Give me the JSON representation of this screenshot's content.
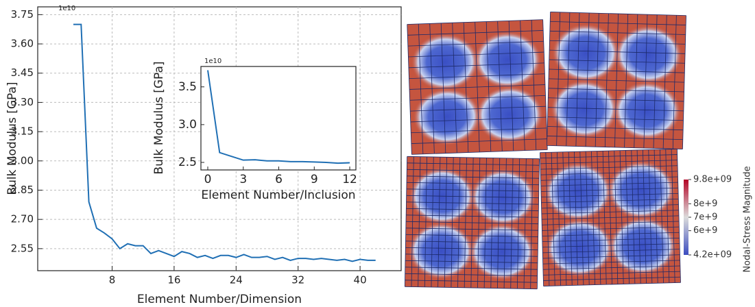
{
  "chart_data": [
    {
      "type": "line",
      "x_label": "Element Number/Dimension",
      "y_label": "Bulk Modulus [GPa]",
      "offset_text": "1e10",
      "x": [
        3,
        4,
        5,
        6,
        7,
        8,
        9,
        10,
        11,
        12,
        13,
        14,
        15,
        16,
        17,
        18,
        19,
        20,
        21,
        22,
        23,
        24,
        25,
        26,
        27,
        28,
        29,
        30,
        31,
        32,
        33,
        34,
        35,
        36,
        37,
        38,
        39,
        40,
        41,
        42
      ],
      "series": [
        {
          "color": "#1f6fb4",
          "values": [
            3.7,
            3.7,
            2.79,
            2.655,
            2.63,
            2.6,
            2.55,
            2.575,
            2.565,
            2.565,
            2.525,
            2.54,
            2.525,
            2.51,
            2.535,
            2.525,
            2.505,
            2.515,
            2.5,
            2.515,
            2.515,
            2.505,
            2.52,
            2.505,
            2.505,
            2.51,
            2.495,
            2.505,
            2.49,
            2.5,
            2.5,
            2.495,
            2.5,
            2.495,
            2.49,
            2.495,
            2.485,
            2.495,
            2.49,
            2.49
          ]
        }
      ],
      "xlim": [
        -1.6,
        45.3
      ],
      "ylim": [
        2.437,
        3.79
      ],
      "xticks": [
        8,
        16,
        24,
        32,
        40
      ],
      "yticks": [
        {
          "value": 2.55,
          "label": "2.55"
        },
        {
          "value": 2.7,
          "label": "2.70"
        },
        2.85,
        {
          "value": 3.0,
          "label": "3.00"
        },
        3.15,
        {
          "value": 3.3,
          "label": "3.30"
        },
        3.45,
        {
          "value": 3.6,
          "label": "3.60"
        },
        3.75
      ],
      "grid": true
    },
    {
      "type": "line",
      "x_label": "Element Number/Inclusion",
      "y_label": "Bulk Modulus [GPa]",
      "offset_text": "1e10",
      "x": [
        0,
        1,
        2,
        3,
        4,
        5,
        6,
        7,
        8,
        9,
        10,
        11,
        12
      ],
      "series": [
        {
          "color": "#1f6fb4",
          "values": [
            3.72,
            2.63,
            2.58,
            2.53,
            2.535,
            2.52,
            2.52,
            2.51,
            2.51,
            2.505,
            2.5,
            2.49,
            2.495
          ]
        }
      ],
      "xlim": [
        -0.58,
        12.52
      ],
      "ylim": [
        2.4,
        3.77
      ],
      "xticks": [
        0,
        3,
        6,
        9,
        12
      ],
      "yticks": [
        2.5,
        {
          "value": 3.0,
          "label": "3.0"
        },
        3.5
      ],
      "grid": false
    },
    {
      "type": "colorbar",
      "title": "Nodal-Stress Magnitude",
      "lim": [
        4200000000,
        9800000000
      ],
      "colors": [
        "#3b4cc0",
        "#dcdcdc",
        "#b40426"
      ],
      "ticks": [
        {
          "value": 9800000000,
          "label": "9.8e+09"
        },
        {
          "value": 8000000000,
          "label": "8e+9"
        },
        {
          "value": 7000000000,
          "label": "7e+9"
        },
        {
          "value": 6000000000,
          "label": "6e+9"
        },
        {
          "value": 4200000000,
          "label": "4.2e+09"
        }
      ]
    }
  ]
}
